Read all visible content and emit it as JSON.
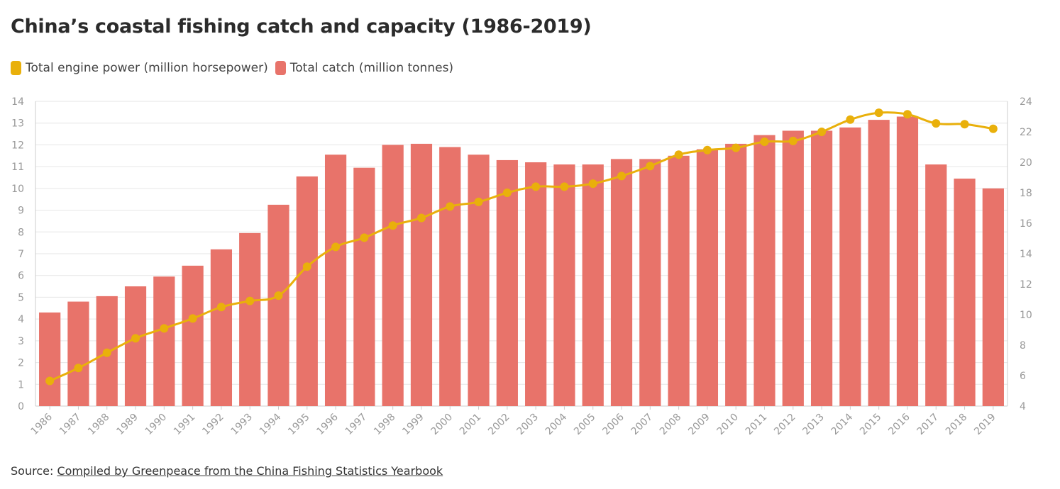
{
  "title": "China’s coastal fishing catch and capacity (1986-2019)",
  "legend": {
    "power_label": "Total engine power (million horsepower)",
    "catch_label": "Total catch (million tonnes)"
  },
  "colors": {
    "bar": "#e8736a",
    "line": "#e9b00b",
    "grid": "#e6e6e6",
    "tick": "#999999"
  },
  "source": {
    "prefix": "Source: ",
    "link_text": "Compiled by Greenpeace from the China Fishing Statistics Yearbook"
  },
  "chart_data": {
    "type": "bar",
    "categories": [
      "1986",
      "1987",
      "1988",
      "1989",
      "1990",
      "1991",
      "1992",
      "1993",
      "1994",
      "1995",
      "1996",
      "1997",
      "1998",
      "1999",
      "2000",
      "2001",
      "2002",
      "2003",
      "2004",
      "2005",
      "2006",
      "2007",
      "2008",
      "2009",
      "2010",
      "2011",
      "2012",
      "2013",
      "2014",
      "2015",
      "2016",
      "2017",
      "2018",
      "2019"
    ],
    "series": [
      {
        "name": "Total catch (million tonnes)",
        "type": "bar",
        "axis": "left",
        "values": [
          4.3,
          4.8,
          5.05,
          5.5,
          5.95,
          6.45,
          7.2,
          7.95,
          9.25,
          10.55,
          11.55,
          10.95,
          12.0,
          12.05,
          11.9,
          11.55,
          11.3,
          11.2,
          11.1,
          11.1,
          11.35,
          11.35,
          11.5,
          11.8,
          12.05,
          12.45,
          12.65,
          12.65,
          12.8,
          13.15,
          13.3,
          11.1,
          10.45,
          10.0
        ]
      },
      {
        "name": "Total engine power (million horsepower)",
        "type": "line",
        "axis": "right",
        "values": [
          5.65,
          6.5,
          7.5,
          8.45,
          9.1,
          9.75,
          10.5,
          10.9,
          11.25,
          13.15,
          14.45,
          15.05,
          15.85,
          16.35,
          17.1,
          17.4,
          18.0,
          18.4,
          18.4,
          18.6,
          19.1,
          19.75,
          20.5,
          20.8,
          20.95,
          21.35,
          21.4,
          22.0,
          22.8,
          23.25,
          23.15,
          22.55,
          22.5,
          22.2
        ]
      }
    ],
    "y_left": {
      "ylim": [
        0,
        14
      ],
      "ticks": [
        0,
        1,
        2,
        3,
        4,
        5,
        6,
        7,
        8,
        9,
        10,
        11,
        12,
        13,
        14
      ]
    },
    "y_right": {
      "ylim": [
        4,
        24
      ],
      "ticks": [
        4,
        6,
        8,
        10,
        12,
        14,
        16,
        18,
        20,
        22,
        24
      ]
    },
    "grid": true,
    "legend_position": "top-left"
  }
}
